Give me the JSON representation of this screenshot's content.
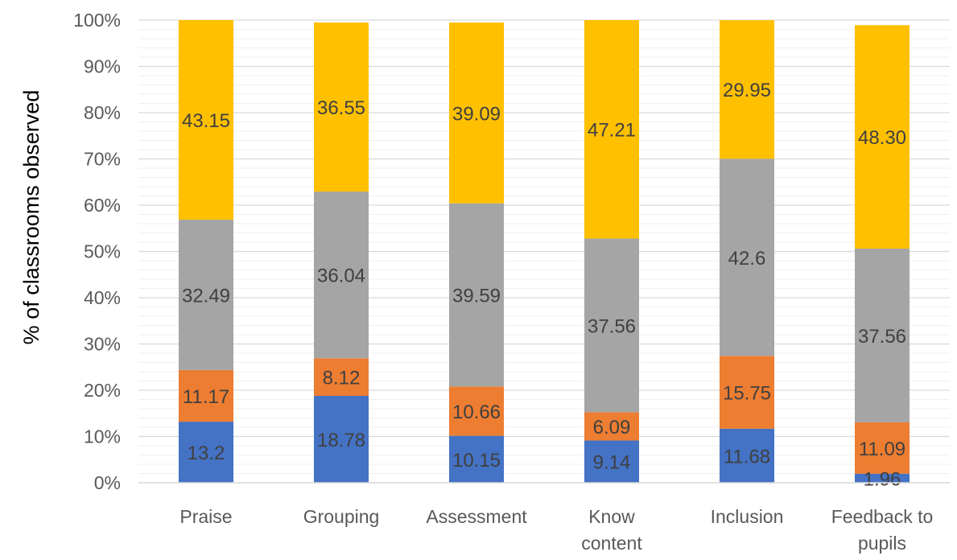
{
  "chart_data": {
    "type": "bar",
    "stacked": true,
    "ylabel": "% of classrooms observed",
    "xlabel": "",
    "title": "",
    "ylim": [
      0,
      100
    ],
    "yticks": [
      "0%",
      "10%",
      "20%",
      "30%",
      "40%",
      "50%",
      "60%",
      "70%",
      "80%",
      "90%",
      "100%"
    ],
    "grid": "horizontal",
    "legend": "none",
    "categories": [
      [
        "Praise"
      ],
      [
        "Grouping"
      ],
      [
        "Assessment"
      ],
      [
        "Know",
        "content"
      ],
      [
        "Inclusion"
      ],
      [
        "Feedback to",
        "pupils"
      ]
    ],
    "series": [
      {
        "color": "#4472C4",
        "values": [
          13.2,
          18.78,
          10.15,
          9.14,
          11.68,
          1.96
        ],
        "labels": [
          "13.2",
          "18.78",
          "10.15",
          "9.14",
          "11.68",
          "1.96"
        ]
      },
      {
        "color": "#ED7D31",
        "values": [
          11.17,
          8.12,
          10.66,
          6.09,
          15.75,
          11.09
        ],
        "labels": [
          "11.17",
          "8.12",
          "10.66",
          "6.09",
          "15.75",
          "11.09"
        ]
      },
      {
        "color": "#A5A5A5",
        "values": [
          32.49,
          36.04,
          39.59,
          37.56,
          42.6,
          37.56
        ],
        "labels": [
          "32.49",
          "36.04",
          "39.59",
          "37.56",
          "42.6",
          "37.56"
        ]
      },
      {
        "color": "#FFC000",
        "values": [
          43.15,
          36.55,
          39.09,
          47.21,
          29.95,
          48.3
        ],
        "labels": [
          "43.15",
          "36.55",
          "39.09",
          "47.21",
          "29.95",
          "48.30"
        ]
      }
    ]
  }
}
